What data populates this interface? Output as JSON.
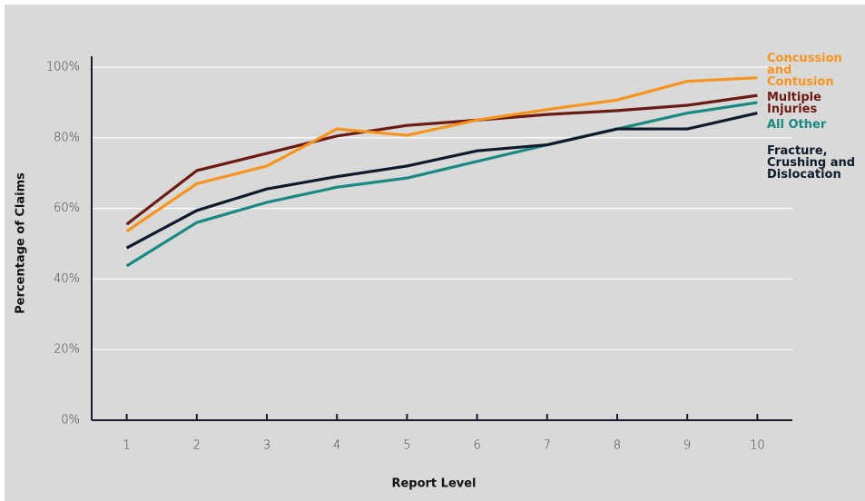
{
  "chart_data": {
    "type": "line",
    "x_label": "Report Level",
    "y_label": "Percentage of Claims",
    "x": [
      1,
      2,
      3,
      4,
      5,
      6,
      7,
      8,
      9,
      10
    ],
    "xlim": [
      0.5,
      10.5
    ],
    "xticks": [
      1,
      2,
      3,
      4,
      5,
      6,
      7,
      8,
      9,
      10
    ],
    "ylim": [
      0,
      100
    ],
    "yticks": [
      {
        "value": 0,
        "label": "0%"
      },
      {
        "value": 20,
        "label": "20%"
      },
      {
        "value": 40,
        "label": "40%"
      },
      {
        "value": 60,
        "label": "60%"
      },
      {
        "value": 80,
        "label": "80%"
      },
      {
        "value": 100,
        "label": "100%"
      }
    ],
    "grid": true,
    "series": [
      {
        "name": "Concussion and Contusion",
        "color": "#f7941d",
        "values": [
          53.5,
          67,
          72,
          82.5,
          80.7,
          85,
          88,
          90.7,
          96,
          97
        ]
      },
      {
        "name": "Multiple Injuries",
        "color": "#6b1a14",
        "values": [
          55.5,
          70.7,
          75.6,
          80.5,
          83.5,
          85,
          86.6,
          87.7,
          89.2,
          92
        ]
      },
      {
        "name": "All Other",
        "color": "#1a8a80",
        "values": [
          43.7,
          56,
          61.7,
          66,
          68.6,
          73.3,
          78,
          82.5,
          87,
          90
        ]
      },
      {
        "name": "Fracture, Crushing and Dislocation",
        "color": "#0d1b2a",
        "values": [
          48.8,
          59.4,
          65.5,
          69,
          72,
          76.3,
          78,
          82.5,
          82.5,
          87
        ]
      }
    ]
  }
}
